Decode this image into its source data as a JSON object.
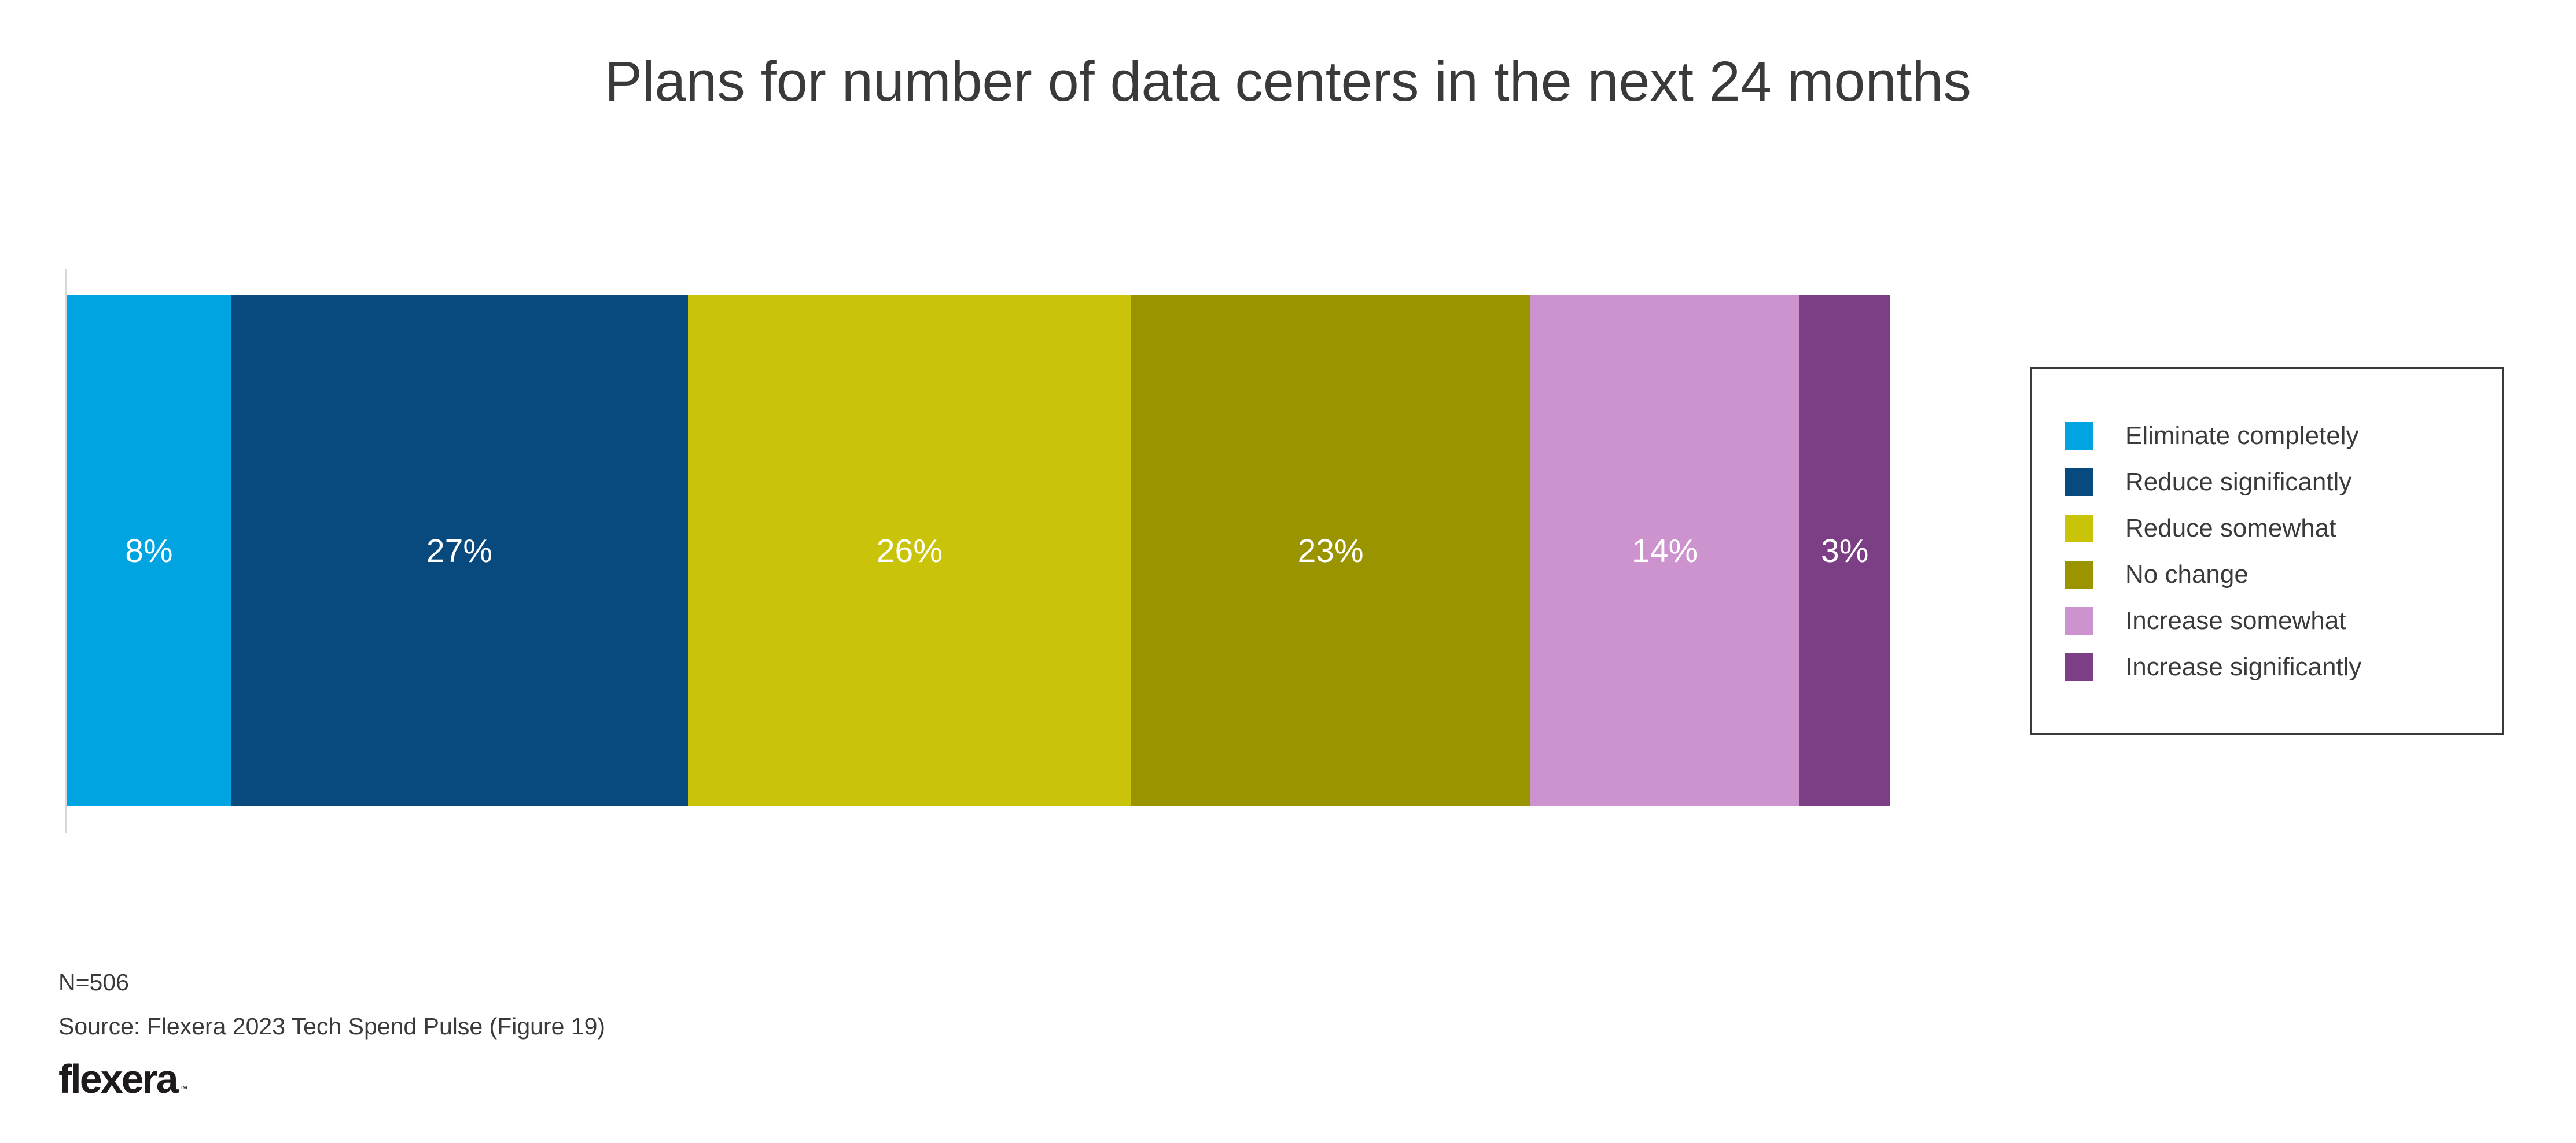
{
  "title": "Plans for number of data centers in the next 24 months",
  "chart_data": {
    "type": "bar",
    "variant": "horizontal-stacked-percentage",
    "title": "Plans for number of data centers in the next 24 months",
    "categories": [
      "Eliminate completely",
      "Reduce significantly",
      "Reduce somewhat",
      "No change",
      "Increase somewhat",
      "Increase significantly"
    ],
    "values": [
      8,
      27,
      26,
      23,
      14,
      3
    ],
    "labels": [
      "8%",
      "27%",
      "26%",
      "23%",
      "14%",
      "3%"
    ],
    "colors": [
      "#00a4e1",
      "#084a7e",
      "#c9c40a",
      "#9a9400",
      "#cc93ce",
      "#7c3e85"
    ],
    "unit": "%",
    "xlabel": "",
    "ylabel": "",
    "grid": false,
    "legend_position": "right",
    "value_label_color": "#ffffff"
  },
  "legend": {
    "items": [
      {
        "label": "Eliminate completely",
        "color": "#00a4e1"
      },
      {
        "label": "Reduce significantly",
        "color": "#084a7e"
      },
      {
        "label": "Reduce somewhat",
        "color": "#c9c40a"
      },
      {
        "label": "No change",
        "color": "#9a9400"
      },
      {
        "label": "Increase somewhat",
        "color": "#cc93ce"
      },
      {
        "label": "Increase significantly",
        "color": "#7c3e85"
      }
    ]
  },
  "footer": {
    "sample_size": "N=506",
    "source": "Source: Flexera 2023 Tech Spend Pulse (Figure 19)",
    "logo_text": "flexera",
    "logo_tm": "™"
  },
  "colors": {
    "background": "#ffffff",
    "title_text": "#3a3a3a",
    "axis_line": "#d8d8d8",
    "legend_border": "#3a3a3a",
    "legend_text": "#3a3a3a",
    "footer_text": "#3a3a3a",
    "logo_text": "#1f1b1c"
  }
}
